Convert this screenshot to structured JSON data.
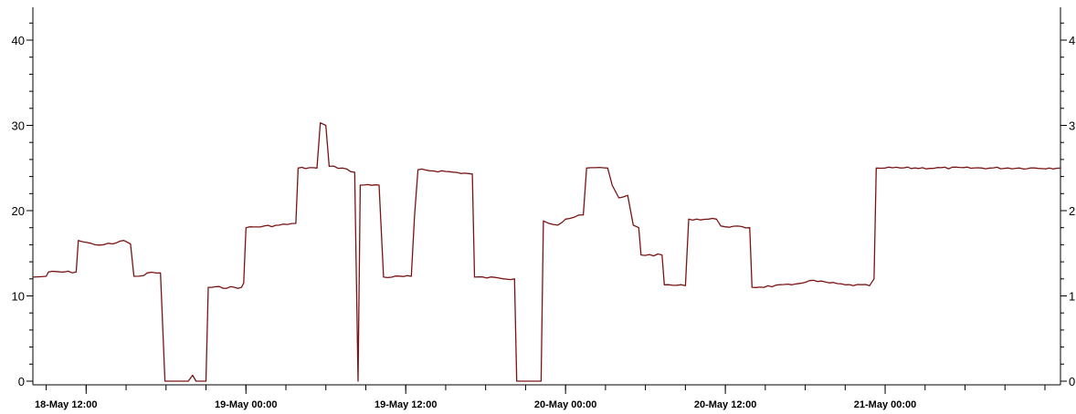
{
  "chart_data": {
    "type": "line",
    "title": "",
    "xlabel": "",
    "ylabel": "",
    "ylim": [
      0,
      45
    ],
    "y_ticks": [
      0,
      10,
      20,
      30,
      40
    ],
    "y_ticks_right": [
      "0",
      "1",
      "2",
      "3",
      "4"
    ],
    "x_time_range": [
      "2023-05-18 08:00",
      "2023-05-21 13:10"
    ],
    "x_ticks": [
      {
        "t": "2023-05-18 12:00",
        "label": "18-May 12:00"
      },
      {
        "t": "2023-05-19 00:00",
        "label": "19-May 00:00"
      },
      {
        "t": "2023-05-19 12:00",
        "label": "19-May 12:00"
      },
      {
        "t": "2023-05-20 00:00",
        "label": "20-May 00:00"
      },
      {
        "t": "2023-05-20 12:00",
        "label": "20-May 12:00"
      },
      {
        "t": "2023-05-21 00:00",
        "label": "21-May 00:00"
      }
    ],
    "grid": false,
    "color": "#7a1414",
    "series": [
      {
        "points": [
          [
            "2023-05-18 08:00",
            12.2
          ],
          [
            "2023-05-18 09:00",
            12.3
          ],
          [
            "2023-05-18 09:10",
            12.8
          ],
          [
            "2023-05-18 11:15",
            12.8
          ],
          [
            "2023-05-18 11:25",
            16.5
          ],
          [
            "2023-05-18 12:40",
            16.0
          ],
          [
            "2023-05-18 14:00",
            16.1
          ],
          [
            "2023-05-18 14:50",
            16.5
          ],
          [
            "2023-05-18 15:20",
            16.1
          ],
          [
            "2023-05-18 15:35",
            12.3
          ],
          [
            "2023-05-18 16:20",
            12.4
          ],
          [
            "2023-05-18 16:35",
            12.7
          ],
          [
            "2023-05-18 17:35",
            12.7
          ],
          [
            "2023-05-18 17:55",
            0
          ],
          [
            "2023-05-18 19:40",
            0
          ],
          [
            "2023-05-18 20:00",
            0.7
          ],
          [
            "2023-05-18 20:15",
            0
          ],
          [
            "2023-05-18 21:00",
            0
          ],
          [
            "2023-05-18 21:10",
            11.0
          ],
          [
            "2023-05-18 23:40",
            11.0
          ],
          [
            "2023-05-18 23:50",
            11.5
          ],
          [
            "2023-05-19 00:00",
            18.0
          ],
          [
            "2023-05-19 02:30",
            18.3
          ],
          [
            "2023-05-19 03:45",
            18.5
          ],
          [
            "2023-05-19 03:55",
            25.0
          ],
          [
            "2023-05-19 05:20",
            25.0
          ],
          [
            "2023-05-19 05:35",
            30.3
          ],
          [
            "2023-05-19 06:00",
            30.0
          ],
          [
            "2023-05-19 06:15",
            25.2
          ],
          [
            "2023-05-19 07:15",
            25.0
          ],
          [
            "2023-05-19 08:10",
            24.5
          ],
          [
            "2023-05-19 08:25",
            0
          ],
          [
            "2023-05-19 08:35",
            23.0
          ],
          [
            "2023-05-19 10:00",
            23.0
          ],
          [
            "2023-05-19 10:20",
            12.2
          ],
          [
            "2023-05-19 12:25",
            12.3
          ],
          [
            "2023-05-19 12:40",
            19.5
          ],
          [
            "2023-05-19 12:55",
            24.8
          ],
          [
            "2023-05-19 15:00",
            24.6
          ],
          [
            "2023-05-19 17:00",
            24.3
          ],
          [
            "2023-05-19 17:10",
            12.2
          ],
          [
            "2023-05-19 19:00",
            12.1
          ],
          [
            "2023-05-19 20:10",
            12.0
          ],
          [
            "2023-05-19 20:20",
            0
          ],
          [
            "2023-05-19 22:10",
            0
          ],
          [
            "2023-05-19 22:20",
            18.8
          ],
          [
            "2023-05-19 23:25",
            18.3
          ],
          [
            "2023-05-20 00:00",
            19.0
          ],
          [
            "2023-05-20 01:20",
            19.5
          ],
          [
            "2023-05-20 01:35",
            25.0
          ],
          [
            "2023-05-20 03:10",
            25.0
          ],
          [
            "2023-05-20 03:30",
            23.0
          ],
          [
            "2023-05-20 04:00",
            21.5
          ],
          [
            "2023-05-20 04:40",
            21.8
          ],
          [
            "2023-05-20 05:05",
            18.3
          ],
          [
            "2023-05-20 05:30",
            18.0
          ],
          [
            "2023-05-20 05:40",
            14.8
          ],
          [
            "2023-05-20 07:15",
            14.8
          ],
          [
            "2023-05-20 07:25",
            11.3
          ],
          [
            "2023-05-20 09:00",
            11.2
          ],
          [
            "2023-05-20 09:15",
            19.0
          ],
          [
            "2023-05-20 11:20",
            19.0
          ],
          [
            "2023-05-20 11:40",
            18.2
          ],
          [
            "2023-05-20 13:50",
            18.0
          ],
          [
            "2023-05-20 14:00",
            11.0
          ],
          [
            "2023-05-20 17:00",
            11.3
          ],
          [
            "2023-05-20 18:20",
            11.8
          ],
          [
            "2023-05-20 21:00",
            11.3
          ],
          [
            "2023-05-20 22:50",
            11.2
          ],
          [
            "2023-05-20 23:10",
            12.0
          ],
          [
            "2023-05-20 23:20",
            25.0
          ],
          [
            "2023-05-21 00:00",
            25.0
          ],
          [
            "2023-05-21 13:10",
            25.0
          ]
        ]
      }
    ]
  }
}
